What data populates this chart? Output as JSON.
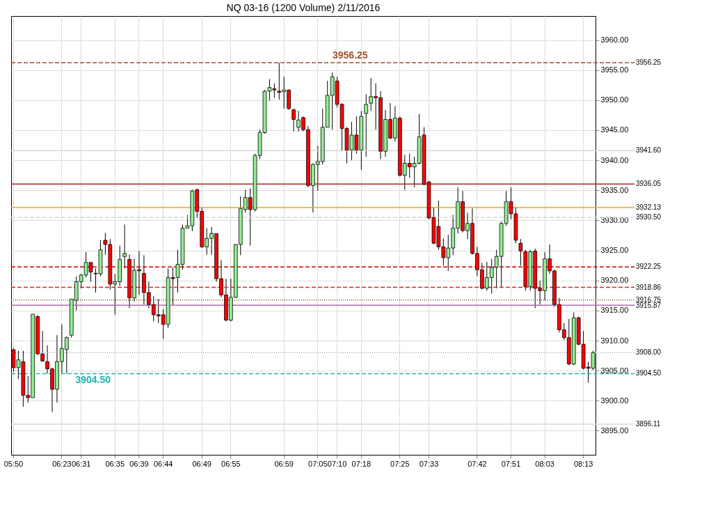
{
  "chart_data": {
    "type": "candlestick",
    "title": "NQ 03-16 (1200 Volume)  2/11/2016",
    "categories": [
      "05:50",
      null,
      null,
      null,
      null,
      null,
      null,
      null,
      null,
      null,
      "06:23",
      null,
      null,
      null,
      "06:31",
      null,
      null,
      null,
      null,
      null,
      null,
      "06:35",
      null,
      null,
      null,
      null,
      "06:39",
      null,
      null,
      null,
      null,
      "06:44",
      null,
      null,
      null,
      null,
      null,
      null,
      null,
      "06:49",
      null,
      null,
      null,
      null,
      null,
      "06:55",
      null,
      null,
      null,
      null,
      null,
      null,
      null,
      null,
      null,
      null,
      "06:59",
      null,
      null,
      null,
      null,
      null,
      null,
      "07:05",
      null,
      null,
      null,
      "07:10",
      null,
      null,
      null,
      null,
      "07:18",
      null,
      null,
      null,
      null,
      null,
      null,
      null,
      "07:25",
      null,
      null,
      null,
      null,
      null,
      "07:33",
      null,
      null,
      null,
      null,
      null,
      null,
      null,
      null,
      null,
      "07:42",
      null,
      null,
      null,
      null,
      null,
      null,
      "07:51",
      null,
      null,
      null,
      null,
      null,
      null,
      "08:03",
      null,
      null,
      null,
      null,
      null,
      null,
      null,
      "08:13",
      null,
      null
    ],
    "ohlc": [
      [
        3908.5,
        3908.7,
        3904.8,
        3905.5
      ],
      [
        3905.5,
        3908.3,
        3903.6,
        3906.8
      ],
      [
        3906.5,
        3908.3,
        3899.0,
        3900.9
      ],
      [
        3900.9,
        3904.1,
        3899.7,
        3900.5
      ],
      [
        3900.5,
        3914.4,
        3900.5,
        3914.4
      ],
      [
        3914.0,
        3914.2,
        3907.6,
        3907.8
      ],
      [
        3907.8,
        3911.6,
        3906.5,
        3906.6
      ],
      [
        3906.5,
        3909.2,
        3904.5,
        3905.3
      ],
      [
        3905.3,
        3905.5,
        3898.1,
        3901.9
      ],
      [
        3901.9,
        3910.9,
        3899.7,
        3906.5
      ],
      [
        3906.5,
        3912.7,
        3904.5,
        3908.7
      ],
      [
        3908.5,
        3910.7,
        3904.5,
        3910.5
      ],
      [
        3910.9,
        3916.9,
        3910.5,
        3916.9
      ],
      [
        3916.7,
        3920.7,
        3915.0,
        3919.8
      ],
      [
        3919.8,
        3921.1,
        3918.7,
        3920.9
      ],
      [
        3920.9,
        3924.7,
        3920.5,
        3923.0
      ],
      [
        3923.0,
        3923.0,
        3919.8,
        3921.4
      ],
      [
        3921.2,
        3922.0,
        3918.0,
        3921.1
      ],
      [
        3921.1,
        3926.7,
        3920.7,
        3925.1
      ],
      [
        3926.7,
        3927.9,
        3924.3,
        3926.0
      ],
      [
        3926.0,
        3926.9,
        3918.5,
        3919.4
      ],
      [
        3919.4,
        3921.1,
        3914.3,
        3919.8
      ],
      [
        3919.8,
        3925.8,
        3919.1,
        3923.5
      ],
      [
        3924.0,
        3929.3,
        3922.0,
        3924.5
      ],
      [
        3923.5,
        3924.3,
        3915.4,
        3917.1
      ],
      [
        3917.1,
        3923.6,
        3916.5,
        3921.7
      ],
      [
        3921.8,
        3924.9,
        3917.6,
        3921.6
      ],
      [
        3921.2,
        3924.2,
        3916.0,
        3918.0
      ],
      [
        3918.0,
        3919.8,
        3915.4,
        3916.0
      ],
      [
        3916.0,
        3917.4,
        3913.2,
        3914.3
      ],
      [
        3914.3,
        3916.9,
        3912.9,
        3914.1
      ],
      [
        3914.3,
        3915.2,
        3910.3,
        3912.7
      ],
      [
        3912.7,
        3922.0,
        3912.1,
        3920.5
      ],
      [
        3920.5,
        3922.2,
        3915.8,
        3920.3
      ],
      [
        3920.5,
        3925.1,
        3918.0,
        3922.7
      ],
      [
        3922.7,
        3929.3,
        3921.8,
        3928.7
      ],
      [
        3928.7,
        3930.9,
        3928.7,
        3929.1
      ],
      [
        3929.1,
        3935.1,
        3928.2,
        3934.9
      ],
      [
        3935.1,
        3935.3,
        3930.4,
        3931.5
      ],
      [
        3931.5,
        3932.2,
        3925.4,
        3925.6
      ],
      [
        3925.6,
        3928.7,
        3924.3,
        3927.0
      ],
      [
        3927.0,
        3928.9,
        3924.3,
        3927.8
      ],
      [
        3927.8,
        3927.8,
        3919.8,
        3920.3
      ],
      [
        3920.3,
        3923.4,
        3917.2,
        3917.6
      ],
      [
        3917.6,
        3920.3,
        3913.2,
        3913.4
      ],
      [
        3913.4,
        3920.3,
        3913.2,
        3917.2
      ],
      [
        3917.2,
        3926.0,
        3917.1,
        3926.0
      ],
      [
        3926.0,
        3934.0,
        3924.2,
        3932.0
      ],
      [
        3931.8,
        3935.1,
        3931.3,
        3933.8
      ],
      [
        3933.8,
        3935.3,
        3925.8,
        3931.8
      ],
      [
        3931.8,
        3941.1,
        3931.5,
        3940.8
      ],
      [
        3940.8,
        3945.1,
        3940.2,
        3944.6
      ],
      [
        3944.6,
        3951.7,
        3944.4,
        3951.5
      ],
      [
        3951.5,
        3953.5,
        3949.9,
        3952.1
      ],
      [
        3951.9,
        3952.8,
        3950.4,
        3951.7
      ],
      [
        3951.5,
        3956.25,
        3950.1,
        3951.3
      ],
      [
        3951.4,
        3953.9,
        3948.6,
        3951.7
      ],
      [
        3951.7,
        3951.7,
        3948.4,
        3948.6
      ],
      [
        3948.4,
        3948.6,
        3944.8,
        3946.8
      ],
      [
        3945.5,
        3948.2,
        3944.8,
        3946.7
      ],
      [
        3947.1,
        3947.3,
        3944.8,
        3945.1
      ],
      [
        3945.1,
        3945.7,
        3935.5,
        3935.8
      ],
      [
        3935.8,
        3939.5,
        3931.3,
        3939.3
      ],
      [
        3939.3,
        3942.4,
        3934.9,
        3939.8
      ],
      [
        3939.8,
        3948.6,
        3939.3,
        3945.5
      ],
      [
        3945.5,
        3953.2,
        3945.5,
        3950.8
      ],
      [
        3950.8,
        3954.6,
        3945.1,
        3953.9
      ],
      [
        3953.2,
        3953.9,
        3948.8,
        3949.3
      ],
      [
        3949.3,
        3949.5,
        3941.5,
        3945.3
      ],
      [
        3945.3,
        3945.5,
        3939.5,
        3941.7
      ],
      [
        3941.7,
        3946.4,
        3940.0,
        3944.2
      ],
      [
        3944.2,
        3947.3,
        3941.1,
        3941.7
      ],
      [
        3941.7,
        3948.2,
        3938.4,
        3947.3
      ],
      [
        3947.8,
        3951.0,
        3940.6,
        3949.3
      ],
      [
        3949.5,
        3953.7,
        3948.2,
        3950.6
      ],
      [
        3950.6,
        3952.8,
        3945.1,
        3950.4
      ],
      [
        3950.4,
        3951.5,
        3940.2,
        3941.5
      ],
      [
        3941.5,
        3948.4,
        3940.6,
        3946.8
      ],
      [
        3946.8,
        3949.5,
        3943.5,
        3943.7
      ],
      [
        3943.7,
        3949.0,
        3943.1,
        3947.0
      ],
      [
        3947.0,
        3947.3,
        3937.3,
        3937.5
      ],
      [
        3937.5,
        3940.9,
        3935.1,
        3939.5
      ],
      [
        3939.5,
        3941.1,
        3937.1,
        3938.9
      ],
      [
        3938.9,
        3940.6,
        3935.5,
        3939.5
      ],
      [
        3939.5,
        3947.7,
        3939.3,
        3943.9
      ],
      [
        3944.2,
        3945.5,
        3935.8,
        3936.0
      ],
      [
        3936.4,
        3936.6,
        3930.2,
        3930.4
      ],
      [
        3930.5,
        3932.2,
        3926.0,
        3926.2
      ],
      [
        3929.0,
        3933.3,
        3925.1,
        3925.6
      ],
      [
        3925.6,
        3927.0,
        3922.5,
        3923.8
      ],
      [
        3923.8,
        3927.6,
        3921.6,
        3925.4
      ],
      [
        3925.4,
        3930.9,
        3924.2,
        3928.7
      ],
      [
        3928.7,
        3935.5,
        3927.8,
        3933.1
      ],
      [
        3933.1,
        3934.9,
        3928.0,
        3928.3
      ],
      [
        3928.3,
        3931.3,
        3926.9,
        3929.5
      ],
      [
        3929.5,
        3932.0,
        3924.3,
        3924.5
      ],
      [
        3924.5,
        3925.6,
        3920.7,
        3921.8
      ],
      [
        3921.8,
        3922.9,
        3918.5,
        3918.7
      ],
      [
        3918.7,
        3923.1,
        3918.3,
        3920.5
      ],
      [
        3920.5,
        3923.6,
        3917.8,
        3922.2
      ],
      [
        3922.2,
        3925.1,
        3918.7,
        3924.0
      ],
      [
        3924.0,
        3929.8,
        3918.9,
        3929.5
      ],
      [
        3929.5,
        3934.9,
        3929.1,
        3933.1
      ],
      [
        3933.1,
        3935.5,
        3930.2,
        3931.1
      ],
      [
        3931.1,
        3932.2,
        3926.2,
        3926.7
      ],
      [
        3926.2,
        3926.9,
        3922.5,
        3924.9
      ],
      [
        3924.8,
        3925.1,
        3918.3,
        3919.0
      ],
      [
        3919.0,
        3925.1,
        3918.3,
        3924.8
      ],
      [
        3924.9,
        3925.3,
        3915.4,
        3918.7
      ],
      [
        3918.7,
        3920.0,
        3916.0,
        3918.3
      ],
      [
        3918.3,
        3924.7,
        3916.7,
        3923.6
      ],
      [
        3923.6,
        3926.0,
        3921.1,
        3921.6
      ],
      [
        3921.6,
        3921.8,
        3915.6,
        3916.0
      ],
      [
        3916.0,
        3917.1,
        3911.4,
        3911.8
      ],
      [
        3911.8,
        3912.9,
        3910.1,
        3910.5
      ],
      [
        3910.5,
        3913.6,
        3905.9,
        3906.1
      ],
      [
        3906.1,
        3914.7,
        3905.9,
        3913.8
      ],
      [
        3913.8,
        3914.0,
        3909.2,
        3909.4
      ],
      [
        3909.4,
        3911.6,
        3905.2,
        3905.4
      ],
      [
        3905.6,
        3906.5,
        3903.0,
        3905.4
      ],
      [
        3905.4,
        3908.3,
        3905.1,
        3908.0
      ]
    ],
    "colors": [
      "#ff0000",
      "#90ee90",
      "#ff0000",
      "#ff0000",
      "#90ee90",
      "#ff0000",
      "#ff0000",
      "#ff0000",
      "#ff0000",
      "#90ee90",
      "#90ee90",
      "#90ee90",
      "#90ee90",
      "#90ee90",
      "#90ee90",
      "#90ee90",
      "#ff0000",
      "#ff0000",
      "#90ee90",
      "#ff0000",
      "#ff0000",
      "#90ee90",
      "#90ee90",
      "#90ee90",
      "#ff0000",
      "#90ee90",
      "#ff0000",
      "#ff0000",
      "#ff0000",
      "#ff0000",
      "#ff0000",
      "#ff0000",
      "#90ee90",
      "#ff0000",
      "#90ee90",
      "#90ee90",
      "#90ee90",
      "#90ee90",
      "#ff0000",
      "#ff0000",
      "#90ee90",
      "#90ee90",
      "#ff0000",
      "#ff0000",
      "#ff0000",
      "#90ee90",
      "#90ee90",
      "#90ee90",
      "#90ee90",
      "#ff0000",
      "#90ee90",
      "#90ee90",
      "#90ee90",
      "#90ee90",
      "#ff0000",
      "#ff0000",
      "#90ee90",
      "#ff0000",
      "#ff0000",
      "#90ee90",
      "#ff0000",
      "#ff0000",
      "#90ee90",
      "#90ee90",
      "#90ee90",
      "#90ee90",
      "#90ee90",
      "#ff0000",
      "#ff0000",
      "#ff0000",
      "#90ee90",
      "#ff0000",
      "#90ee90",
      "#90ee90",
      "#90ee90",
      "#ff0000",
      "#ff0000",
      "#90ee90",
      "#ff0000",
      "#90ee90",
      "#ff0000",
      "#90ee90",
      "#ff0000",
      "#90ee90",
      "#90ee90",
      "#ff0000",
      "#ff0000",
      "#ff0000",
      "#ff0000",
      "#ff0000",
      "#90ee90",
      "#90ee90",
      "#90ee90",
      "#ff0000",
      "#90ee90",
      "#ff0000",
      "#ff0000",
      "#ff0000",
      "#90ee90",
      "#90ee90",
      "#90ee90",
      "#90ee90",
      "#90ee90",
      "#ff0000",
      "#ff0000",
      "#ff0000",
      "#ff0000",
      "#90ee90",
      "#ff0000",
      "#ff0000",
      "#90ee90",
      "#ff0000",
      "#ff0000",
      "#ff0000",
      "#ff0000",
      "#ff0000",
      "#90ee90",
      "#ff0000",
      "#ff0000",
      "#ff0000",
      "#90ee90"
    ],
    "ylim": [
      3891,
      3964
    ],
    "yticks": [
      {
        "value": 3895,
        "label": "3895.00"
      },
      {
        "value": 3900,
        "label": "3900.00"
      },
      {
        "value": 3905,
        "label": "3905.00"
      },
      {
        "value": 3910,
        "label": "3910.00"
      },
      {
        "value": 3915,
        "label": "3915.00"
      },
      {
        "value": 3920,
        "label": "3920.00"
      },
      {
        "value": 3925,
        "label": "3925.00"
      },
      {
        "value": 3930,
        "label": "3930.00"
      },
      {
        "value": 3935,
        "label": "3935.00"
      },
      {
        "value": 3940,
        "label": "3940.00"
      },
      {
        "value": 3945,
        "label": "3945.00"
      },
      {
        "value": 3950,
        "label": "3950.00"
      },
      {
        "value": 3955,
        "label": "3955.00"
      },
      {
        "value": 3960,
        "label": "3960.00"
      }
    ],
    "grid": true,
    "ref_lines": [
      {
        "axis": "y",
        "value": 3956.25,
        "label": "3956.25",
        "color": "#a0522d",
        "line_style": "dashed"
      },
      {
        "axis": "y",
        "value": 3941.6,
        "label": "3941.60",
        "color": "#d8d8d8",
        "line_style": "solid"
      },
      {
        "axis": "y",
        "value": 3936.05,
        "label": "3936.05",
        "color": "#a52a2a",
        "line_style": "solid"
      },
      {
        "axis": "y",
        "value": 3932.13,
        "label": "3932.13",
        "color": "#f0a030",
        "line_style": "solid"
      },
      {
        "axis": "y",
        "value": 3930.5,
        "label": "3930.50",
        "color": "#d8d8d8",
        "line_style": "dashed"
      },
      {
        "axis": "y",
        "value": 3922.25,
        "label": "3922.25",
        "color": "#cc0000",
        "line_style": "dashed"
      },
      {
        "axis": "y",
        "value": 3918.86,
        "label": "3918.86",
        "color": "#dd2222",
        "line_style": "dashed"
      },
      {
        "axis": "y",
        "value": 3916.75,
        "label": "3916.75",
        "color": "#8b4513",
        "line_style": "dotted"
      },
      {
        "axis": "y",
        "value": 3915.87,
        "label": "3915.87",
        "color": "#b070b0",
        "line_style": "solid"
      },
      {
        "axis": "y",
        "value": 3908.0,
        "label": "3908.00",
        "color": "#aaaaaa",
        "line_style": "dotted"
      },
      {
        "axis": "y",
        "value": 3904.5,
        "label": "3904.50",
        "color": "#20b2aa",
        "line_style": "dashed"
      },
      {
        "axis": "y",
        "value": 3896.11,
        "label": "3896.11",
        "color": "#d8d8d8",
        "line_style": "solid"
      }
    ],
    "annotations": [
      {
        "text": "3956.25",
        "y": 3956.25
      },
      {
        "text": "3904.50",
        "y": 3904.5
      }
    ]
  }
}
